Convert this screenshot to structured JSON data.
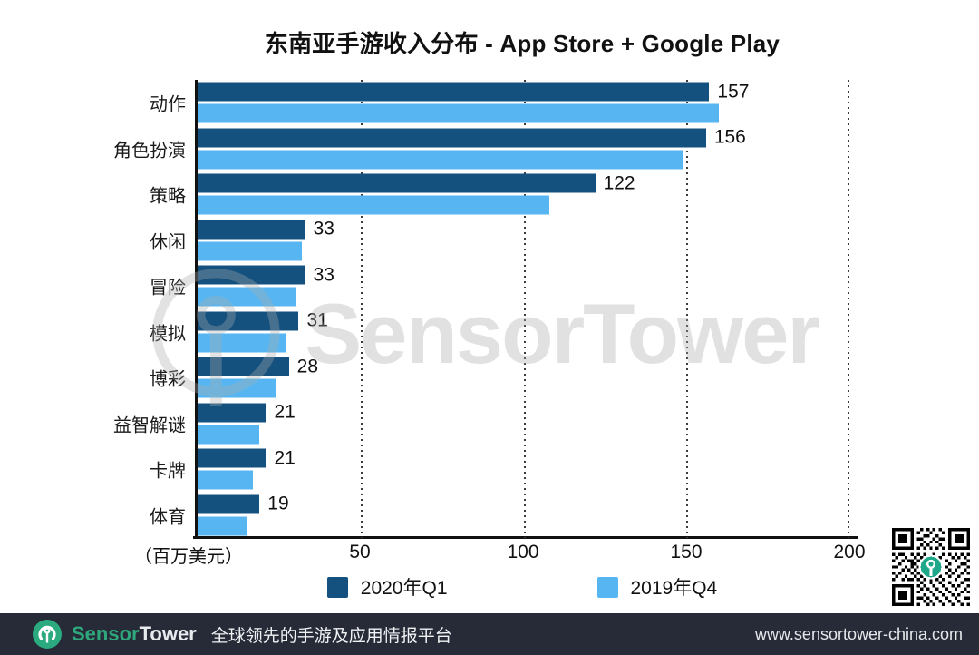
{
  "title": "东南亚手游收入分布 - App Store + Google Play",
  "chart_data": {
    "type": "bar",
    "orientation": "horizontal",
    "title": "东南亚手游收入分布 - App Store + Google Play",
    "categories": [
      "动作",
      "角色扮演",
      "策略",
      "休闲",
      "冒险",
      "模拟",
      "博彩",
      "益智解谜",
      "卡牌",
      "体育"
    ],
    "series": [
      {
        "name": "2020年Q1",
        "color": "#14517F",
        "values": [
          157,
          156,
          122,
          33,
          33,
          31,
          28,
          21,
          21,
          19
        ],
        "data_labels_shown": true
      },
      {
        "name": "2019年Q4",
        "color": "#57B6F2",
        "values": [
          160,
          149,
          108,
          32,
          30,
          27,
          24,
          19,
          17,
          15
        ],
        "data_labels_shown": false
      }
    ],
    "xlabel": "（百万美元）",
    "x_ticks": [
      50,
      100,
      150,
      200
    ],
    "xlim": [
      0,
      200
    ],
    "grid": "dotted vertical gridlines at ticks",
    "legend_position": "bottom-center"
  },
  "watermark": {
    "text": "SensorTower",
    "icon": "sensortower-tower-ring",
    "color": "#ababab"
  },
  "qr": {
    "name": "sensortower-qr-code",
    "center_logo_color": "#1FA98A"
  },
  "footer": {
    "brand_sensor": "Sensor",
    "brand_tower": "Tower",
    "tagline": "全球领先的手游及应用情报平台",
    "url": "www.sensortower-china.com",
    "bg_color": "#272B38",
    "brand_green": "#2FA77C"
  }
}
